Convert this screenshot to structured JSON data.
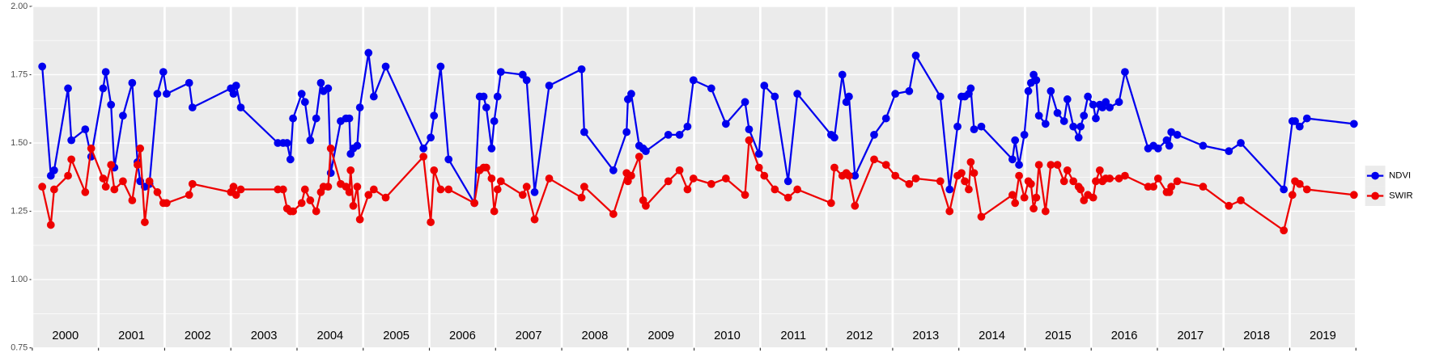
{
  "chart_data": {
    "type": "line",
    "xlim": [
      2000,
      2020
    ],
    "xticks": [
      2000,
      2001,
      2002,
      2003,
      2004,
      2005,
      2006,
      2007,
      2008,
      2009,
      2010,
      2011,
      2012,
      2013,
      2014,
      2015,
      2016,
      2017,
      2018,
      2019,
      2020
    ],
    "year_labels": [
      "2000",
      "2001",
      "2002",
      "2003",
      "2004",
      "2005",
      "2006",
      "2007",
      "2008",
      "2009",
      "2010",
      "2011",
      "2012",
      "2013",
      "2014",
      "2015",
      "2016",
      "2017",
      "2018",
      "2019"
    ],
    "ylim": [
      0.75,
      2.0
    ],
    "yticks": [
      {
        "value": 0.75,
        "label": "0.75"
      },
      {
        "value": 1.0,
        "label": "1.00"
      },
      {
        "value": 1.25,
        "label": "1.25"
      },
      {
        "value": 1.5,
        "label": "1.50"
      },
      {
        "value": 1.75,
        "label": "1.75"
      },
      {
        "value": 2.0,
        "label": "2.00"
      }
    ],
    "grid": true,
    "legend": "right",
    "x": [
      2000.15,
      2000.28,
      2000.33,
      2000.54,
      2000.59,
      2000.8,
      2000.89,
      2001.07,
      2001.11,
      2001.19,
      2001.24,
      2001.37,
      2001.51,
      2001.59,
      2001.63,
      2001.7,
      2001.77,
      2001.89,
      2001.98,
      2002.03,
      2002.37,
      2002.42,
      2003.0,
      2003.04,
      2003.08,
      2003.15,
      2003.71,
      2003.79,
      2003.85,
      2003.9,
      2003.94,
      2004.07,
      2004.12,
      2004.2,
      2004.29,
      2004.36,
      2004.4,
      2004.47,
      2004.51,
      2004.66,
      2004.74,
      2004.79,
      2004.81,
      2004.85,
      2004.91,
      2004.95,
      2005.08,
      2005.16,
      2005.34,
      2005.91,
      2006.02,
      2006.07,
      2006.17,
      2006.29,
      2006.68,
      2006.76,
      2006.82,
      2006.86,
      2006.94,
      2006.98,
      2007.03,
      2007.08,
      2007.41,
      2007.47,
      2007.59,
      2007.81,
      2008.3,
      2008.34,
      2008.78,
      2008.98,
      2009.0,
      2009.05,
      2009.17,
      2009.23,
      2009.27,
      2009.61,
      2009.78,
      2009.9,
      2009.99,
      2010.26,
      2010.48,
      2010.77,
      2010.83,
      2010.98,
      2011.06,
      2011.22,
      2011.42,
      2011.56,
      2012.07,
      2012.12,
      2012.24,
      2012.3,
      2012.34,
      2012.43,
      2012.72,
      2012.9,
      2013.04,
      2013.25,
      2013.35,
      2013.72,
      2013.86,
      2013.98,
      2014.04,
      2014.09,
      2014.15,
      2014.18,
      2014.23,
      2014.34,
      2014.81,
      2014.85,
      2014.91,
      2014.99,
      2015.05,
      2015.09,
      2015.13,
      2015.17,
      2015.21,
      2015.31,
      2015.39,
      2015.49,
      2015.59,
      2015.64,
      2015.73,
      2015.81,
      2015.84,
      2015.89,
      2015.95,
      2016.03,
      2016.07,
      2016.13,
      2016.17,
      2016.22,
      2016.28,
      2016.42,
      2016.51,
      2016.86,
      2016.94,
      2017.01,
      2017.14,
      2017.18,
      2017.21,
      2017.3,
      2017.69,
      2018.08,
      2018.26,
      2018.91,
      2019.04,
      2019.08,
      2019.15,
      2019.26,
      2019.97
    ],
    "series": [
      {
        "name": "NDVI",
        "color": "#0000ee",
        "values": [
          1.78,
          1.38,
          1.4,
          1.7,
          1.51,
          1.55,
          1.45,
          1.7,
          1.76,
          1.64,
          1.41,
          1.6,
          1.72,
          1.43,
          1.36,
          1.34,
          1.35,
          1.68,
          1.76,
          1.68,
          1.72,
          1.63,
          1.7,
          1.68,
          1.71,
          1.63,
          1.5,
          1.5,
          1.5,
          1.44,
          1.59,
          1.68,
          1.65,
          1.51,
          1.59,
          1.72,
          1.69,
          1.7,
          1.39,
          1.58,
          1.59,
          1.59,
          1.46,
          1.48,
          1.49,
          1.63,
          1.83,
          1.67,
          1.78,
          1.48,
          1.52,
          1.6,
          1.78,
          1.44,
          1.28,
          1.67,
          1.67,
          1.63,
          1.48,
          1.58,
          1.67,
          1.76,
          1.75,
          1.73,
          1.32,
          1.71,
          1.77,
          1.54,
          1.4,
          1.54,
          1.66,
          1.68,
          1.49,
          1.48,
          1.47,
          1.53,
          1.53,
          1.56,
          1.73,
          1.7,
          1.57,
          1.65,
          1.55,
          1.46,
          1.71,
          1.67,
          1.36,
          1.68,
          1.53,
          1.52,
          1.75,
          1.65,
          1.67,
          1.38,
          1.53,
          1.59,
          1.68,
          1.69,
          1.82,
          1.67,
          1.33,
          1.56,
          1.67,
          1.67,
          1.68,
          1.7,
          1.55,
          1.56,
          1.44,
          1.51,
          1.42,
          1.53,
          1.69,
          1.72,
          1.75,
          1.73,
          1.6,
          1.57,
          1.69,
          1.61,
          1.58,
          1.66,
          1.56,
          1.52,
          1.56,
          1.6,
          1.67,
          1.64,
          1.59,
          1.64,
          1.63,
          1.65,
          1.63,
          1.65,
          1.76,
          1.48,
          1.49,
          1.48,
          1.51,
          1.49,
          1.54,
          1.53,
          1.49,
          1.47,
          1.5,
          1.33,
          1.58,
          1.58,
          1.56,
          1.59,
          1.57
        ]
      },
      {
        "name": "SWIR",
        "color": "#ee0000",
        "values": [
          1.34,
          1.2,
          1.33,
          1.38,
          1.44,
          1.32,
          1.48,
          1.37,
          1.34,
          1.42,
          1.33,
          1.36,
          1.29,
          1.42,
          1.48,
          1.21,
          1.36,
          1.32,
          1.28,
          1.28,
          1.31,
          1.35,
          1.32,
          1.34,
          1.31,
          1.33,
          1.33,
          1.33,
          1.26,
          1.25,
          1.25,
          1.28,
          1.33,
          1.29,
          1.25,
          1.32,
          1.34,
          1.34,
          1.48,
          1.35,
          1.34,
          1.32,
          1.4,
          1.27,
          1.34,
          1.22,
          1.31,
          1.33,
          1.3,
          1.45,
          1.21,
          1.4,
          1.33,
          1.33,
          1.28,
          1.4,
          1.41,
          1.41,
          1.37,
          1.25,
          1.33,
          1.36,
          1.31,
          1.34,
          1.22,
          1.37,
          1.3,
          1.34,
          1.24,
          1.39,
          1.36,
          1.38,
          1.45,
          1.29,
          1.27,
          1.36,
          1.4,
          1.33,
          1.37,
          1.35,
          1.37,
          1.31,
          1.51,
          1.41,
          1.38,
          1.33,
          1.3,
          1.33,
          1.28,
          1.41,
          1.38,
          1.39,
          1.38,
          1.27,
          1.44,
          1.42,
          1.38,
          1.35,
          1.37,
          1.36,
          1.25,
          1.38,
          1.39,
          1.36,
          1.33,
          1.43,
          1.39,
          1.23,
          1.31,
          1.28,
          1.38,
          1.3,
          1.36,
          1.35,
          1.26,
          1.3,
          1.42,
          1.25,
          1.42,
          1.42,
          1.36,
          1.4,
          1.36,
          1.34,
          1.33,
          1.29,
          1.31,
          1.3,
          1.36,
          1.4,
          1.36,
          1.37,
          1.37,
          1.37,
          1.38,
          1.34,
          1.34,
          1.37,
          1.32,
          1.32,
          1.34,
          1.36,
          1.34,
          1.27,
          1.29,
          1.18,
          1.31,
          1.36,
          1.35,
          1.33,
          1.31
        ]
      }
    ]
  }
}
